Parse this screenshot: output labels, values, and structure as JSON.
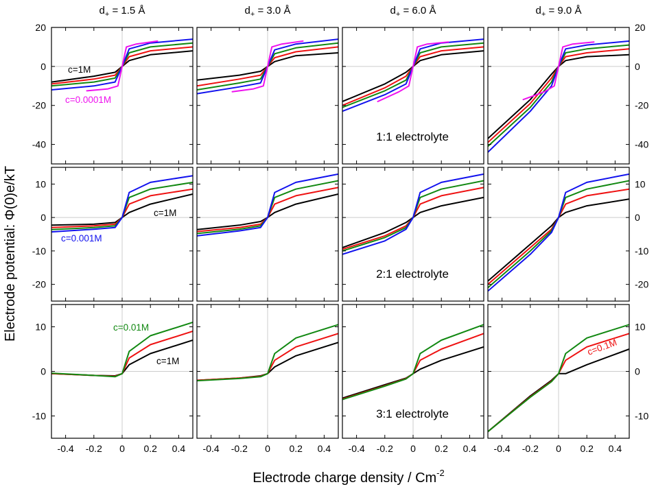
{
  "figure": {
    "xlabel": "Electrode charge density / Cm",
    "xlabel_sup": "-2",
    "ylabel": "Electrode potential: Φ(0)e/kT"
  },
  "chart_data": {
    "type": "line",
    "layout": "grid 3 rows x 4 columns",
    "column_titles": [
      {
        "prefix": "d",
        "sub": "+",
        "text": " = 1.5 Å"
      },
      {
        "prefix": "d",
        "sub": "+",
        "text": " = 3.0 Å"
      },
      {
        "prefix": "d",
        "sub": "+",
        "text": " = 6.0 Å"
      },
      {
        "prefix": "d",
        "sub": "+",
        "text": " = 9.0 Å"
      }
    ],
    "d_plus_angstrom": [
      1.5,
      3.0,
      6.0,
      9.0
    ],
    "xlim": [
      -0.5,
      0.5
    ],
    "x_ticks": [
      "-0.4",
      "-0.2",
      "0",
      "0.2",
      "0.4"
    ],
    "series_colors": {
      "c=1M": "#000000",
      "c=0.1M": "#ee1111",
      "c=0.01M": "#118811",
      "c=0.001M": "#1111ee",
      "c=0.0001M": "#ee11ee"
    },
    "rows": [
      {
        "electrolyte_label": "1:1 electrolyte",
        "ylim": [
          -50,
          20
        ],
        "y_ticks": [
          20,
          0,
          -20,
          -40
        ],
        "series": [
          {
            "name": "c=1M",
            "color": "#000000",
            "x": [
              -0.5,
              -0.2,
              -0.05,
              0,
              0.05,
              0.2,
              0.5
            ],
            "values_by_d": [
              [
                -8,
                -5,
                -3,
                0,
                3,
                6,
                8
              ],
              [
                -7,
                -4.5,
                -2.5,
                0,
                2.5,
                5.5,
                7
              ],
              [
                -18,
                -9,
                -3,
                0,
                3,
                6,
                8
              ],
              [
                -37,
                -17,
                -4,
                0,
                3,
                5,
                6
              ]
            ]
          },
          {
            "name": "c=0.1M",
            "color": "#ee1111",
            "x": [
              -0.5,
              -0.2,
              -0.05,
              0,
              0.05,
              0.2,
              0.5
            ],
            "values_by_d": [
              [
                -9,
                -6.5,
                -4.5,
                0,
                5,
                8,
                10
              ],
              [
                -10,
                -6.5,
                -4.5,
                0,
                4.5,
                7.5,
                10
              ],
              [
                -20,
                -11,
                -5,
                0,
                5,
                8,
                10
              ],
              [
                -39,
                -19,
                -6,
                0,
                5,
                7,
                9
              ]
            ]
          },
          {
            "name": "c=0.01M",
            "color": "#118811",
            "x": [
              -0.5,
              -0.2,
              -0.05,
              0,
              0.05,
              0.2,
              0.5
            ],
            "values_by_d": [
              [
                -10,
                -8,
                -6,
                0,
                7,
                10,
                12
              ],
              [
                -12,
                -8.5,
                -6.5,
                0,
                6.5,
                9.5,
                12
              ],
              [
                -21,
                -12.5,
                -7,
                0,
                7,
                10,
                12
              ],
              [
                -41,
                -21,
                -8,
                0,
                7,
                9,
                11
              ]
            ]
          },
          {
            "name": "c=0.001M",
            "color": "#1111ee",
            "x": [
              -0.5,
              -0.2,
              -0.05,
              0,
              0.05,
              0.2,
              0.5
            ],
            "values_by_d": [
              [
                -12,
                -10,
                -8,
                0,
                9,
                12,
                14
              ],
              [
                -14,
                -10.5,
                -8.5,
                0,
                8.5,
                11.5,
                14
              ],
              [
                -23,
                -14.5,
                -9,
                0,
                9,
                12,
                14
              ],
              [
                -44,
                -23,
                -10,
                0,
                9,
                11,
                13
              ]
            ]
          },
          {
            "name": "c=0.0001M",
            "color": "#ee11ee",
            "x": [
              -0.25,
              -0.1,
              -0.03,
              0,
              0.03,
              0.1,
              0.25
            ],
            "values_by_d": [
              [
                -12.5,
                -11.5,
                -10,
                0,
                10,
                11.5,
                13
              ],
              [
                -13,
                -11.5,
                -10,
                0,
                10,
                11.5,
                13
              ],
              [
                -18,
                -13,
                -10,
                0,
                10,
                11.5,
                12.5
              ],
              [
                -17,
                -13,
                -10,
                0,
                10,
                11.5,
                12.5
              ]
            ]
          }
        ],
        "annotations": [
          {
            "text": "c=1M",
            "col": 0,
            "color": "#000000"
          },
          {
            "text": "c=0.0001M",
            "col": 0,
            "color": "#ee11ee"
          }
        ]
      },
      {
        "electrolyte_label": "2:1 electrolyte",
        "ylim": [
          -25,
          15
        ],
        "y_ticks": [
          10,
          0,
          -10,
          -20
        ],
        "series": [
          {
            "name": "c=1M",
            "color": "#000000",
            "x": [
              -0.5,
              -0.2,
              -0.05,
              0,
              0.05,
              0.2,
              0.5
            ],
            "values_by_d": [
              [
                -2.3,
                -2,
                -1.5,
                0,
                1.5,
                4,
                7
              ],
              [
                -3.6,
                -2.3,
                -1.2,
                0,
                1.5,
                4,
                7
              ],
              [
                -9,
                -4.5,
                -1.5,
                0,
                1.5,
                3.5,
                6
              ],
              [
                -19,
                -8,
                -2.5,
                0,
                1.5,
                3.5,
                5.5
              ]
            ]
          },
          {
            "name": "c=0.1M",
            "color": "#ee1111",
            "x": [
              -0.5,
              -0.2,
              -0.05,
              0,
              0.05,
              0.2,
              0.5
            ],
            "values_by_d": [
              [
                -3,
                -2.5,
                -2,
                0,
                4,
                6.5,
                8.5
              ],
              [
                -4.2,
                -3,
                -2,
                0,
                4,
                6.5,
                9
              ],
              [
                -9.5,
                -5.5,
                -2.5,
                0,
                4,
                6.5,
                9
              ],
              [
                -20,
                -9,
                -3.5,
                0,
                4,
                6.5,
                8.5
              ]
            ]
          },
          {
            "name": "c=0.01M",
            "color": "#118811",
            "x": [
              -0.5,
              -0.2,
              -0.05,
              0,
              0.05,
              0.2,
              0.5
            ],
            "values_by_d": [
              [
                -3.6,
                -3,
                -2.5,
                0,
                6,
                8.5,
                10.5
              ],
              [
                -4.8,
                -3.5,
                -2.5,
                0,
                6,
                8.5,
                11
              ],
              [
                -10,
                -6,
                -3,
                0,
                6,
                8.5,
                11
              ],
              [
                -21,
                -10,
                -4,
                0,
                6,
                8.5,
                11
              ]
            ]
          },
          {
            "name": "c=0.001M",
            "color": "#1111ee",
            "x": [
              -0.5,
              -0.2,
              -0.05,
              0,
              0.05,
              0.2,
              0.5
            ],
            "values_by_d": [
              [
                -4.3,
                -3.5,
                -3,
                0,
                7.5,
                10.5,
                12.5
              ],
              [
                -5.5,
                -4,
                -3,
                0,
                7.5,
                10.5,
                13
              ],
              [
                -11,
                -7,
                -3.5,
                0,
                7.5,
                10.5,
                13
              ],
              [
                -22,
                -11,
                -4.5,
                0,
                7.5,
                10.5,
                13
              ]
            ]
          }
        ],
        "annotations": [
          {
            "text": "c=1M",
            "col": 0,
            "color": "#000000"
          },
          {
            "text": "c=0.001M",
            "col": 0,
            "color": "#1111ee"
          }
        ]
      },
      {
        "electrolyte_label": "3:1 electrolyte",
        "ylim": [
          -15,
          15
        ],
        "y_ticks": [
          10,
          0,
          -10
        ],
        "series": [
          {
            "name": "c=1M",
            "color": "#000000",
            "x": [
              -0.5,
              -0.2,
              -0.05,
              0,
              0.05,
              0.2,
              0.5
            ],
            "values_by_d": [
              [
                -0.5,
                -0.9,
                -1,
                -0.5,
                1.5,
                4,
                7
              ],
              [
                -2,
                -1.5,
                -1,
                -0.5,
                1,
                3.5,
                6.5
              ],
              [
                -6,
                -3,
                -1.5,
                -0.5,
                0.5,
                2.5,
                5.5
              ],
              [
                -13.5,
                -5.5,
                -2,
                -0.5,
                -0.5,
                1.5,
                5
              ]
            ]
          },
          {
            "name": "c=0.1M",
            "color": "#ee1111",
            "x": [
              -0.5,
              -0.2,
              -0.05,
              0,
              0.05,
              0.2,
              0.5
            ],
            "values_by_d": [
              [
                -0.5,
                -0.9,
                -1.1,
                -0.5,
                3,
                6,
                9
              ],
              [
                -2,
                -1.5,
                -1.1,
                -0.5,
                2.5,
                5.5,
                8.5
              ],
              [
                -6.2,
                -3.2,
                -1.6,
                -0.5,
                2.5,
                5,
                8.5
              ],
              [
                -13.5,
                -5.7,
                -2.2,
                -0.5,
                2.5,
                5.5,
                8.5
              ]
            ]
          },
          {
            "name": "c=0.01M",
            "color": "#118811",
            "x": [
              -0.5,
              -0.2,
              -0.05,
              0,
              0.05,
              0.2,
              0.5
            ],
            "values_by_d": [
              [
                -0.4,
                -0.9,
                -1.2,
                -0.5,
                4.5,
                8,
                11
              ],
              [
                -2.1,
                -1.6,
                -1.2,
                -0.5,
                4,
                7.5,
                10.5
              ],
              [
                -6.3,
                -3.3,
                -1.7,
                -0.5,
                4,
                7,
                10.5
              ],
              [
                -13.5,
                -5.8,
                -2.3,
                -0.5,
                4,
                7.5,
                10.5
              ]
            ]
          }
        ],
        "annotations": [
          {
            "text": "c=0.01M",
            "col": 0,
            "color": "#118811"
          },
          {
            "text": "c=1M",
            "col": 0,
            "color": "#000000"
          },
          {
            "text": "c=0.1M",
            "col": 3,
            "color": "#ee1111"
          }
        ]
      }
    ]
  }
}
